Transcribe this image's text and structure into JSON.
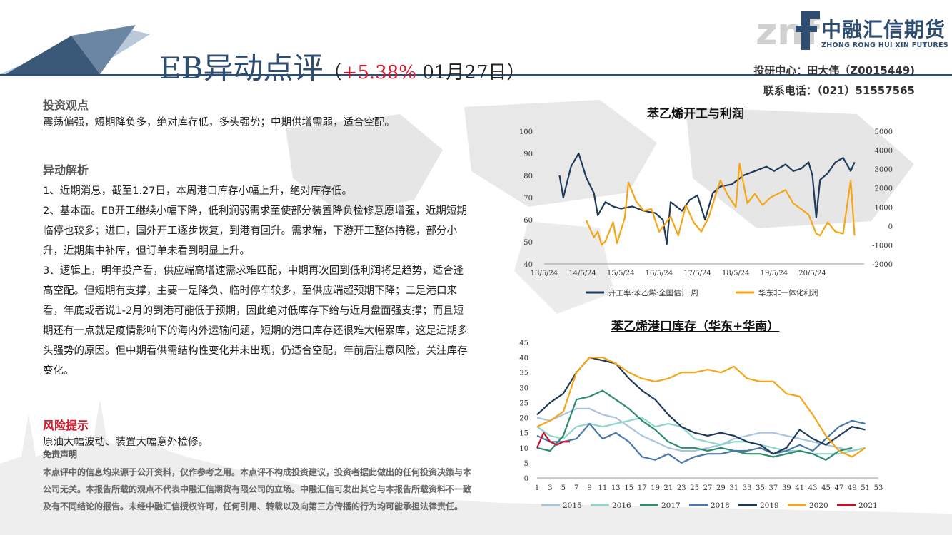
{
  "header": {
    "title_main": "EB异动点评",
    "title_open": "（",
    "title_pct": "+5.38%",
    "title_date": " 01月27日",
    "title_close": "）",
    "logo_mark": "znf",
    "logo_cn": "中融汇信期货",
    "logo_en": "ZHONG RONG HUI XIN FUTURES",
    "contact_line1": "投研中心：田大伟（Z0015449)",
    "contact_line2": "联系电话：（021）51557565"
  },
  "view": {
    "heading": "投资观点",
    "text": "震荡偏强，短期降负多，绝对库存低，多头强势；中期供增需弱，适合空配。"
  },
  "analysis": {
    "heading": "异动解析",
    "p1": "1、近期消息，截至1.27日，本周港口库存小幅上升，绝对库存低。",
    "p2": "2、基本面。EB开工继续小幅下降，低利润弱需求至使部分装置降负检修意愿增强，近期短期临停也较多；进口，国外开工逐步恢复，到港有回升。需求端，下游开工整体持稳，部分小升，近期集中补库，但订单未看到明显上升。",
    "p3": "3、逻辑上，明年投产看，供应端高增速需求难匹配，中期再次回到低利润将是趋势，适合逢高空配。但短期有支撑，主要一是降负、临时停车较多，至供应端超预期下降；二是港口来看，年底或者说1-2月的到港可能低于预期，因此绝对低库存下给与近月盘面强支撑；而且短期还有一点就是疫情影响下的海内外运输问题，短期的港口库存还很难大幅累库，这是近期多头强势的原因。但中期看供需结构性变化并未出现，仍适合空配，年前后注意风险，关注库存变化。"
  },
  "risk": {
    "heading": "风险提示",
    "text": "原油大幅波动、装置大幅意外检修。"
  },
  "disclaimer": {
    "heading": "免责声明",
    "text": "本点评中的信息均来源于公开资料，仅作参考之用。本点评不构成投资建议，投资者据此做出的任何投资决策与本公司无关。本报告所载的观点不代表中融汇信期货有限公司的立场。中融汇信可发出其它与本报告所载资料不一致及有不同结论的报告。未经中融汇信授权许可，任何引用、转载以及向第三方传播的行为均可能承担法律责任。"
  },
  "chart_data": [
    {
      "type": "line",
      "title": "苯乙烯开工与利润",
      "x_ticks": [
        "13/5/24",
        "14/5/24",
        "15/5/24",
        "16/5/24",
        "17/5/24",
        "18/5/24",
        "19/5/24",
        "20/5/24"
      ],
      "y_left": {
        "ticks": [
          40,
          50,
          60,
          70,
          80,
          90,
          100
        ],
        "lim": [
          40,
          100
        ]
      },
      "y_right": {
        "ticks": [
          -2000,
          -1000,
          0,
          1000,
          2000,
          3000,
          4000,
          5000
        ],
        "lim": [
          -2000,
          5000
        ]
      },
      "series": [
        {
          "name": "开工率:苯乙烯:全国估计 周",
          "axis": "left",
          "color": "#1f3a5a",
          "x": [
            2013.4,
            2013.5,
            2013.7,
            2013.9,
            2014.1,
            2014.3,
            2014.4,
            2014.6,
            2014.8,
            2015.0,
            2015.3,
            2015.6,
            2015.9,
            2016.1,
            2016.2,
            2016.3,
            2016.6,
            2016.8,
            2017.0,
            2017.2,
            2017.4,
            2017.6,
            2017.9,
            2018.2,
            2018.5,
            2018.8,
            2019.0,
            2019.3,
            2019.5,
            2019.7,
            2019.9,
            2020.0,
            2020.1,
            2020.2,
            2020.4,
            2020.6,
            2020.8,
            2021.0,
            2021.1
          ],
          "y": [
            80,
            70,
            84,
            90,
            79,
            72,
            62,
            68,
            66,
            65,
            66,
            64,
            63,
            60,
            49,
            68,
            64,
            69,
            71,
            60,
            72,
            75,
            76,
            80,
            82,
            84,
            82,
            85,
            82,
            83,
            86,
            80,
            61,
            78,
            81,
            86,
            88,
            82,
            86
          ]
        },
        {
          "name": "华东非一体化利润",
          "axis": "right",
          "color": "#f5a515",
          "x": [
            2014.1,
            2014.3,
            2014.4,
            2014.5,
            2014.6,
            2014.8,
            2014.9,
            2015.1,
            2015.2,
            2015.4,
            2015.6,
            2015.8,
            2016.0,
            2016.3,
            2016.5,
            2016.7,
            2016.9,
            2017.1,
            2017.3,
            2017.5,
            2017.6,
            2017.8,
            2018.0,
            2018.1,
            2018.3,
            2018.5,
            2018.7,
            2018.9,
            2019.1,
            2019.3,
            2019.5,
            2019.7,
            2019.9,
            2020.1,
            2020.2,
            2020.4,
            2020.6,
            2020.8,
            2021.0,
            2021.1
          ],
          "y": [
            300,
            -600,
            -300,
            -1000,
            -800,
            200,
            -900,
            400,
            2300,
            1300,
            800,
            900,
            -300,
            500,
            -500,
            1100,
            200,
            -300,
            500,
            1800,
            2400,
            1600,
            1000,
            3300,
            1200,
            1700,
            1100,
            1500,
            1700,
            1900,
            1200,
            900,
            600,
            -400,
            -500,
            200,
            -300,
            -400,
            2400,
            -500
          ]
        }
      ]
    },
    {
      "type": "line",
      "title": "苯乙烯港口库存（华东+华南）",
      "x_ticks": [
        1,
        3,
        5,
        7,
        9,
        11,
        13,
        15,
        17,
        19,
        21,
        23,
        25,
        27,
        29,
        31,
        33,
        35,
        37,
        39,
        41,
        43,
        45,
        47,
        49,
        51,
        53
      ],
      "ylim": [
        0,
        45
      ],
      "y_ticks": [
        0,
        5,
        10,
        15,
        20,
        25,
        30,
        35,
        40,
        45
      ],
      "series": [
        {
          "name": "2015",
          "color": "#a9c4e0",
          "x": [
            1,
            3,
            5,
            7,
            9,
            11,
            13,
            15,
            17,
            19,
            21,
            23,
            25,
            27,
            29,
            31,
            33,
            35,
            37,
            39,
            41,
            43,
            45,
            47,
            49,
            51
          ],
          "y": [
            20,
            19,
            21,
            23,
            23,
            21,
            20,
            17,
            14,
            12,
            10,
            9,
            9,
            10,
            11,
            13,
            14,
            15,
            15,
            14,
            13,
            12,
            11,
            10,
            9,
            10
          ]
        },
        {
          "name": "2016",
          "color": "#8fd6cc",
          "x": [
            1,
            3,
            5,
            7,
            9,
            11,
            13,
            15,
            17,
            19,
            21,
            23,
            25,
            27,
            29,
            31,
            33,
            35,
            37,
            39,
            41,
            43,
            45,
            47,
            49,
            51
          ],
          "y": [
            17,
            14,
            13,
            17,
            18,
            17,
            18,
            19,
            20,
            17,
            18,
            17,
            13,
            12,
            11,
            12,
            12,
            11,
            10,
            9,
            9,
            8,
            8,
            8,
            9,
            10
          ]
        },
        {
          "name": "2017",
          "color": "#2e8b6e",
          "x": [
            1,
            3,
            5,
            7,
            9,
            11,
            13,
            15,
            17,
            19,
            21,
            23,
            25,
            27,
            29,
            31,
            33,
            35,
            37,
            39,
            41,
            43,
            45,
            47,
            49
          ],
          "y": [
            10,
            9,
            14,
            26,
            27,
            29,
            26,
            23,
            19,
            16,
            12,
            10,
            10,
            9,
            10,
            9,
            8,
            8,
            7,
            8,
            9,
            8,
            6,
            9,
            10
          ]
        },
        {
          "name": "2018",
          "color": "#4a78aa",
          "x": [
            1,
            3,
            5,
            7,
            9,
            11,
            13,
            15,
            17,
            19,
            21,
            23,
            25,
            27,
            29,
            31,
            33,
            35,
            37,
            39,
            41,
            43,
            45,
            47,
            49,
            51
          ],
          "y": [
            14,
            12,
            12,
            13,
            18,
            13,
            15,
            12,
            7,
            6,
            8,
            5,
            7,
            8,
            8,
            9,
            9,
            10,
            8,
            9,
            11,
            9,
            13,
            17,
            19,
            18
          ]
        },
        {
          "name": "2019",
          "color": "#1f3a5a",
          "x": [
            1,
            3,
            5,
            7,
            9,
            11,
            13,
            15,
            17,
            19,
            21,
            23,
            25,
            27,
            29,
            31,
            33,
            35,
            37,
            39,
            41,
            43,
            45,
            47,
            49,
            51
          ],
          "y": [
            21,
            25,
            28,
            35,
            40,
            39,
            38,
            33,
            29,
            26,
            21,
            17,
            15,
            14,
            15,
            14,
            12,
            11,
            8,
            10,
            16,
            13,
            11,
            14,
            17,
            16
          ]
        },
        {
          "name": "2020",
          "color": "#f5a515",
          "x": [
            1,
            3,
            5,
            7,
            9,
            11,
            13,
            15,
            17,
            19,
            21,
            23,
            25,
            27,
            29,
            31,
            33,
            35,
            37,
            39,
            41,
            43,
            45,
            47,
            49,
            51
          ],
          "y": [
            17,
            19,
            22,
            35,
            40,
            40,
            38,
            35,
            33,
            32,
            33,
            35,
            35,
            36,
            35,
            37,
            33,
            32,
            32,
            28,
            27,
            21,
            14,
            9,
            7,
            10
          ]
        },
        {
          "name": "2021",
          "color": "#c8102e",
          "x": [
            1,
            2,
            3,
            4,
            5,
            6
          ],
          "y": [
            10,
            15,
            12,
            11,
            12,
            12
          ]
        }
      ]
    }
  ]
}
